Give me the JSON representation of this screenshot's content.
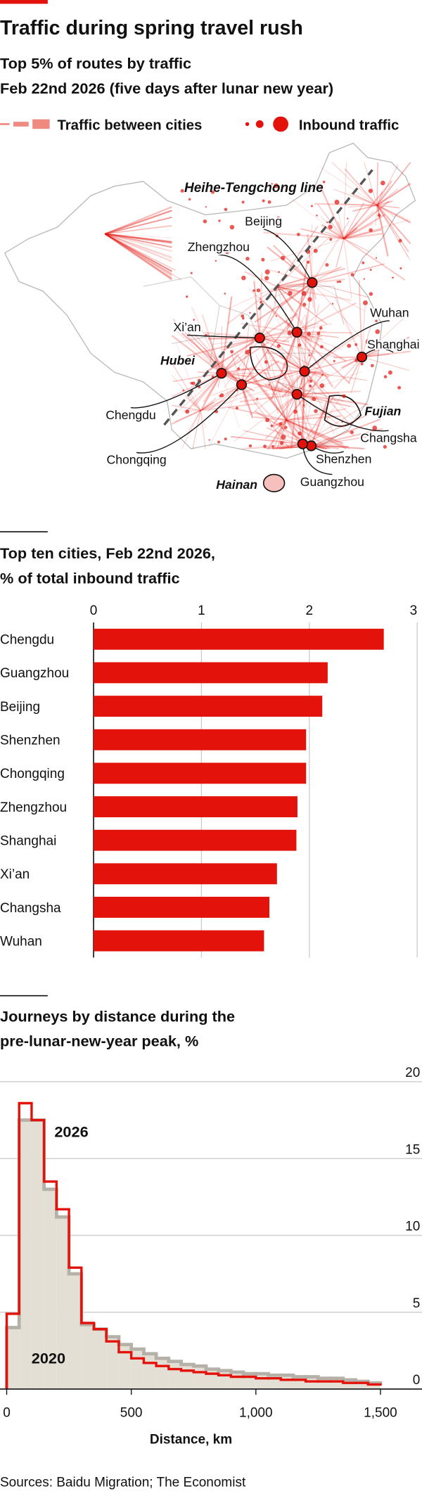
{
  "header": {
    "title": "Traffic during spring travel rush",
    "subtitle": [
      "Top 5% of routes by traffic",
      "Feb 22nd 2026 (five days after lunar new year)"
    ],
    "legend": [
      "Traffic between cities",
      "Inbound traffic"
    ]
  },
  "map": {
    "line_label": "Heihe-Tengchong line",
    "cities": [
      "Beijing",
      "Zhengzhou",
      "Xi’an",
      "Wuhan",
      "Shanghai",
      "Chengdu",
      "Chongqing",
      "Changsha",
      "Shenzhen",
      "Guangzhou"
    ],
    "regions": [
      "Hubei",
      "Fujian",
      "Hainan"
    ]
  },
  "chart_data": [
    {
      "type": "bar",
      "orientation": "horizontal",
      "title": [
        "Top ten cities, Feb 22nd 2026,",
        "% of total inbound traffic"
      ],
      "categories": [
        "Chengdu",
        "Guangzhou",
        "Beijing",
        "Shenzhen",
        "Chongqing",
        "Zhengzhou",
        "Shanghai",
        "Xi’an",
        "Changsha",
        "Wuhan"
      ],
      "values": [
        2.69,
        2.17,
        2.12,
        1.97,
        1.97,
        1.89,
        1.88,
        1.7,
        1.63,
        1.58
      ],
      "color": "#e3120b",
      "xlim": [
        0,
        3
      ],
      "xticks": [
        0,
        1,
        2,
        3
      ],
      "grid": true
    },
    {
      "type": "histogram",
      "title": [
        "Journeys by distance during the",
        "pre-lunar-new-year peak, %"
      ],
      "x_label": "Distance, km",
      "bins": [
        0,
        50,
        100,
        150,
        200,
        250,
        300,
        350,
        400,
        450,
        500,
        550,
        600,
        650,
        700,
        750,
        800,
        850,
        900,
        950,
        1000,
        1050,
        1100,
        1150,
        1200,
        1250,
        1300,
        1350,
        1400,
        1450,
        1500
      ],
      "series": [
        {
          "name": "2020",
          "color": "#b5b0a8",
          "fill": "#e4dfd5",
          "values": [
            4.0,
            17.5,
            17.5,
            13.0,
            11.2,
            7.5,
            4.2,
            3.9,
            3.4,
            2.9,
            2.6,
            2.3,
            2.0,
            1.8,
            1.6,
            1.5,
            1.3,
            1.2,
            1.1,
            1.0,
            1.0,
            0.9,
            0.9,
            0.8,
            0.8,
            0.7,
            0.7,
            0.6,
            0.5,
            0.4
          ]
        },
        {
          "name": "2026",
          "color": "#e3120b",
          "values": [
            4.9,
            18.6,
            17.5,
            13.5,
            11.7,
            7.9,
            4.3,
            3.9,
            3.1,
            2.4,
            2.0,
            1.7,
            1.5,
            1.3,
            1.2,
            1.1,
            1.0,
            0.9,
            0.8,
            0.8,
            0.7,
            0.7,
            0.6,
            0.6,
            0.5,
            0.5,
            0.5,
            0.4,
            0.4,
            0.3
          ]
        }
      ],
      "xlim": [
        0,
        1650
      ],
      "xticks": [
        0,
        500,
        {
          "value": 1000,
          "label": "1,000"
        },
        {
          "value": 1500,
          "label": "1,500"
        }
      ],
      "ylim": [
        0,
        20
      ],
      "yticks": [
        0,
        5,
        10,
        15,
        20
      ],
      "grid": true
    }
  ],
  "source": "Sources: Baidu Migration; The Economist"
}
